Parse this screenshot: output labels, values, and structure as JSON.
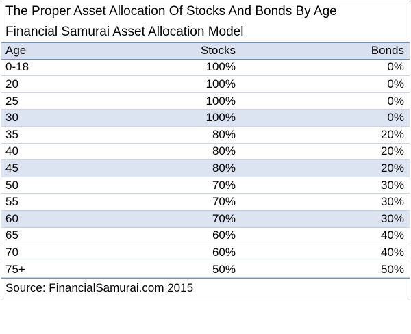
{
  "title_line_1": "The Proper Asset Allocation Of Stocks And Bonds By Age",
  "title_line_2": "Financial Samurai Asset Allocation Model",
  "columns": {
    "age": "Age",
    "stocks": "Stocks",
    "bonds": "Bonds"
  },
  "rows": [
    {
      "age": "0-18",
      "stocks": "100%",
      "bonds": "0%",
      "banded": false
    },
    {
      "age": "20",
      "stocks": "100%",
      "bonds": "0%",
      "banded": false
    },
    {
      "age": "25",
      "stocks": "100%",
      "bonds": "0%",
      "banded": false
    },
    {
      "age": "30",
      "stocks": "100%",
      "bonds": "0%",
      "banded": true
    },
    {
      "age": "35",
      "stocks": "80%",
      "bonds": "20%",
      "banded": false
    },
    {
      "age": "40",
      "stocks": "80%",
      "bonds": "20%",
      "banded": false
    },
    {
      "age": "45",
      "stocks": "80%",
      "bonds": "20%",
      "banded": true
    },
    {
      "age": "50",
      "stocks": "70%",
      "bonds": "30%",
      "banded": false
    },
    {
      "age": "55",
      "stocks": "70%",
      "bonds": "30%",
      "banded": false
    },
    {
      "age": "60",
      "stocks": "70%",
      "bonds": "30%",
      "banded": true
    },
    {
      "age": "65",
      "stocks": "60%",
      "bonds": "40%",
      "banded": false
    },
    {
      "age": "70",
      "stocks": "60%",
      "bonds": "40%",
      "banded": false
    },
    {
      "age": "75+",
      "stocks": "50%",
      "bonds": "50%",
      "banded": false
    }
  ],
  "source": "Source: FinancialSamurai.com 2015",
  "colors": {
    "header_fill": "#d9e1f0",
    "band_fill": "#dce4f2",
    "rule": "#6f8fc7"
  }
}
